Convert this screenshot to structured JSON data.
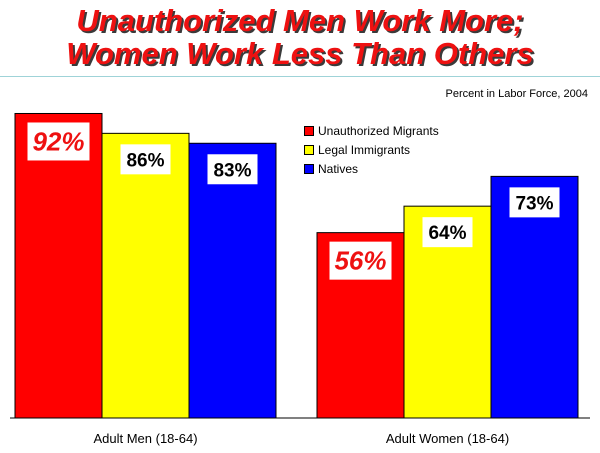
{
  "title_line1": "Unauthorized Men Work More;",
  "title_line2": "Women Work Less Than Others",
  "chart_data": {
    "type": "bar",
    "title": "Unauthorized Men Work More; Women Work Less Than Others",
    "subtitle": "Percent in Labor Force, 2004",
    "categories": [
      "Adult Men (18-64)",
      "Adult Women (18-64)"
    ],
    "series": [
      {
        "name": "Unauthorized Migrants",
        "color": "#ff0000",
        "values": [
          92,
          56
        ],
        "labels": [
          "92%",
          "56%"
        ]
      },
      {
        "name": "Legal Immigrants",
        "color": "#ffff00",
        "values": [
          86,
          64
        ],
        "labels": [
          "86%",
          "64%"
        ]
      },
      {
        "name": "Natives",
        "color": "#0000ff",
        "values": [
          83,
          73
        ],
        "labels": [
          "83%",
          "73%"
        ]
      }
    ],
    "ylim": [
      0,
      100
    ],
    "grid": false,
    "legend_position": "top-right",
    "xlabel": "",
    "ylabel": ""
  }
}
